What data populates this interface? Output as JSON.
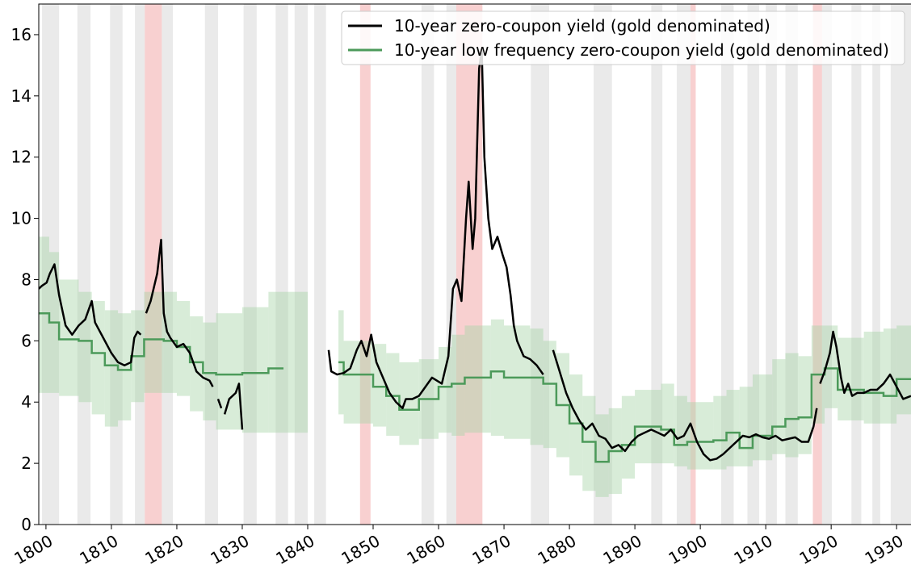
{
  "chart_data": {
    "type": "line",
    "xlim": [
      1798.9,
      1932.2
    ],
    "ylim": [
      0,
      17
    ],
    "xticks": [
      1800,
      1810,
      1820,
      1830,
      1840,
      1850,
      1860,
      1870,
      1880,
      1890,
      1900,
      1910,
      1920,
      1930
    ],
    "yticks": [
      0,
      2,
      4,
      6,
      8,
      10,
      12,
      14,
      16
    ],
    "legend": "upper right",
    "recession_color": "#d9d9d9",
    "recession_periods": [
      [
        1799.4,
        1802.0
      ],
      [
        1804.8,
        1806.8
      ],
      [
        1809.8,
        1811.7
      ],
      [
        1813.6,
        1815.1
      ],
      [
        1817.7,
        1819.4
      ],
      [
        1824.3,
        1826.3
      ],
      [
        1830.2,
        1832.2
      ],
      [
        1835.1,
        1837.0
      ],
      [
        1838.0,
        1840.0
      ],
      [
        1841.0,
        1842.8
      ],
      [
        1857.4,
        1859.3
      ],
      [
        1861.2,
        1862.7
      ],
      [
        1874.1,
        1876.9
      ],
      [
        1883.7,
        1886.5
      ],
      [
        1892.5,
        1894.2
      ],
      [
        1896.4,
        1898.5
      ],
      [
        1903.2,
        1905.1
      ],
      [
        1907.2,
        1909.0
      ],
      [
        1910.0,
        1911.7
      ],
      [
        1913.0,
        1914.9
      ],
      [
        1918.6,
        1920.1
      ],
      [
        1923.1,
        1924.6
      ],
      [
        1926.3,
        1927.5
      ],
      [
        1929.1,
        1932.2
      ]
    ],
    "war_color": "#f2a9a9",
    "war_periods": [
      [
        1815.1,
        1817.7
      ],
      [
        1848.0,
        1849.6
      ],
      [
        1862.7,
        1866.7
      ],
      [
        1898.5,
        1899.3
      ],
      [
        1917.2,
        1918.6
      ]
    ],
    "series": [
      {
        "name": "10-year zero-coupon yield (gold denominated)",
        "color": "#000000",
        "x": [
          1798.9,
          1799.4,
          1800.1,
          1800.6,
          1801.3,
          1802,
          1803,
          1804,
          1805,
          1806,
          1807,
          1807.5,
          1808,
          1809,
          1810,
          1811,
          1812,
          1813,
          1813.5,
          1814,
          1814.5,
          1815,
          1815.3,
          1816,
          1817,
          1817.6,
          1818,
          1818.5,
          1819,
          1820,
          1821,
          1822,
          1823,
          1824,
          1825,
          1825.5,
          1826,
          1826.3,
          1826.8,
          1827,
          1827.3,
          1828,
          1829,
          1829.5,
          1830,
          1836,
          1843.2,
          1843.6,
          1844.5,
          1845.5,
          1846.5,
          1847.5,
          1848.2,
          1849,
          1849.7,
          1850.5,
          1851.5,
          1852.5,
          1853.5,
          1854.5,
          1855,
          1856,
          1857,
          1858,
          1859,
          1860.5,
          1861.5,
          1862.2,
          1862.8,
          1863.5,
          1864.2,
          1864.6,
          1865.2,
          1865.6,
          1866.2,
          1866.6,
          1867,
          1867.6,
          1868.2,
          1869,
          1869.8,
          1870.4,
          1871,
          1871.5,
          1872,
          1873,
          1874,
          1875,
          1876,
          1876.7,
          1877.5,
          1878.5,
          1879.5,
          1880.5,
          1881.5,
          1882.5,
          1883.5,
          1884.5,
          1885.5,
          1886.5,
          1887.5,
          1888.5,
          1889.5,
          1890.5,
          1891.5,
          1892.5,
          1893.5,
          1894.5,
          1895.5,
          1896.5,
          1897.5,
          1898.5,
          1899.5,
          1900.5,
          1901.5,
          1902.5,
          1903.5,
          1904.5,
          1905.5,
          1906.5,
          1907.5,
          1908.5,
          1909.5,
          1910.5,
          1911.5,
          1912.5,
          1913.5,
          1914.5,
          1915.5,
          1916.5,
          1917.3,
          1917.8,
          1918,
          1918.3,
          1919,
          1919.8,
          1920.3,
          1920.8,
          1921.5,
          1922,
          1922.6,
          1923.2,
          1924,
          1925,
          1926,
          1927,
          1928,
          1929,
          1930,
          1931,
          1932.2
        ],
        "values": [
          7.7,
          7.8,
          7.9,
          8.2,
          8.5,
          7.5,
          6.5,
          6.2,
          6.5,
          6.7,
          7.3,
          6.6,
          6.4,
          6.0,
          5.6,
          5.3,
          5.2,
          5.3,
          6.1,
          6.3,
          6.2,
          null,
          6.9,
          7.3,
          8.2,
          9.3,
          6.9,
          6.3,
          6.1,
          5.8,
          5.9,
          5.6,
          5.0,
          4.8,
          4.7,
          4.5,
          null,
          4.1,
          3.8,
          null,
          3.6,
          4.1,
          4.3,
          4.6,
          3.1,
          null,
          5.7,
          5.0,
          4.9,
          4.95,
          5.1,
          5.7,
          6.0,
          5.5,
          6.2,
          5.3,
          4.8,
          4.3,
          4.0,
          3.8,
          4.1,
          4.1,
          4.2,
          4.5,
          4.8,
          4.6,
          5.5,
          7.7,
          8.0,
          7.3,
          10.0,
          11.2,
          9.0,
          10.0,
          14.9,
          15.5,
          12.0,
          10.0,
          9.0,
          9.4,
          8.8,
          8.4,
          7.5,
          6.5,
          6.0,
          5.5,
          5.4,
          5.2,
          4.9,
          null,
          5.7,
          5.0,
          4.3,
          3.8,
          3.4,
          3.1,
          3.3,
          2.9,
          2.8,
          2.5,
          2.6,
          2.4,
          2.7,
          2.9,
          3.0,
          3.1,
          3.0,
          2.9,
          3.1,
          2.8,
          2.9,
          3.3,
          2.7,
          2.3,
          2.1,
          2.15,
          2.3,
          2.5,
          2.7,
          2.9,
          2.85,
          2.95,
          2.85,
          2.8,
          2.9,
          2.75,
          2.8,
          2.85,
          2.7,
          2.7,
          3.2,
          3.8,
          null,
          4.6,
          5.0,
          5.6,
          6.3,
          5.8,
          4.8,
          4.3,
          4.6,
          4.2,
          4.3,
          4.3,
          4.4,
          4.4,
          4.6,
          4.9,
          4.5,
          4.1,
          4.2
        ]
      },
      {
        "name": "10-year low frequency zero-coupon yield (gold denominated)",
        "color": "#4c9a5a",
        "band_color": "#a8d5a8",
        "drawstyle": "steps-post",
        "x": [
          1798.9,
          1800.5,
          1802,
          1805,
          1807,
          1809,
          1811,
          1813,
          1815,
          1818,
          1820,
          1822,
          1824,
          1826,
          1830,
          1834,
          1836.3,
          1840,
          1844.7,
          1845.5,
          1850,
          1852,
          1854,
          1857,
          1860,
          1862,
          1864,
          1868,
          1870,
          1874,
          1876,
          1878,
          1880,
          1882,
          1884,
          1886,
          1888,
          1890,
          1894,
          1896,
          1898,
          1902,
          1904,
          1906,
          1908,
          1911,
          1913,
          1915,
          1917,
          1919,
          1921,
          1925,
          1928,
          1930,
          1932.2
        ],
        "values": [
          6.9,
          6.6,
          6.05,
          6.0,
          5.6,
          5.2,
          5.05,
          5.5,
          6.05,
          6.0,
          5.8,
          5.3,
          4.95,
          4.9,
          4.95,
          5.1,
          5.1,
          null,
          5.3,
          4.9,
          4.5,
          4.2,
          3.75,
          4.1,
          4.5,
          4.6,
          4.8,
          5.0,
          4.8,
          4.8,
          4.6,
          3.9,
          3.3,
          2.7,
          2.05,
          2.4,
          2.6,
          3.2,
          3.1,
          2.6,
          2.7,
          2.75,
          3.0,
          2.5,
          2.9,
          3.2,
          3.45,
          3.5,
          4.9,
          5.1,
          4.4,
          4.3,
          4.2,
          4.75,
          4.75
        ],
        "upper": [
          9.4,
          8.9,
          8.0,
          7.6,
          7.3,
          7.0,
          6.9,
          7.0,
          7.6,
          7.6,
          7.3,
          6.8,
          6.6,
          6.9,
          7.1,
          7.6,
          7.6,
          null,
          7.0,
          6.0,
          5.9,
          5.6,
          5.3,
          5.4,
          5.8,
          6.2,
          6.5,
          6.7,
          6.5,
          6.4,
          6.0,
          5.6,
          4.9,
          4.2,
          3.6,
          3.8,
          4.2,
          4.4,
          4.6,
          4.2,
          4.0,
          4.2,
          4.4,
          4.5,
          4.9,
          5.4,
          5.6,
          5.5,
          6.5,
          6.5,
          6.1,
          6.3,
          6.4,
          6.5,
          6.5
        ],
        "lower": [
          4.3,
          4.3,
          4.2,
          4.0,
          3.6,
          3.2,
          3.4,
          4.0,
          4.3,
          4.3,
          4.2,
          3.7,
          3.4,
          3.1,
          3.0,
          3.0,
          3.0,
          null,
          3.6,
          3.3,
          3.2,
          2.9,
          2.6,
          2.8,
          3.0,
          2.9,
          3.0,
          2.9,
          2.8,
          2.6,
          2.5,
          2.2,
          1.6,
          1.1,
          0.9,
          1.0,
          1.5,
          2.0,
          2.0,
          1.9,
          1.8,
          1.8,
          1.9,
          1.9,
          2.1,
          2.3,
          2.2,
          2.3,
          3.3,
          3.8,
          3.4,
          3.3,
          3.3,
          3.6,
          3.6
        ]
      }
    ]
  }
}
